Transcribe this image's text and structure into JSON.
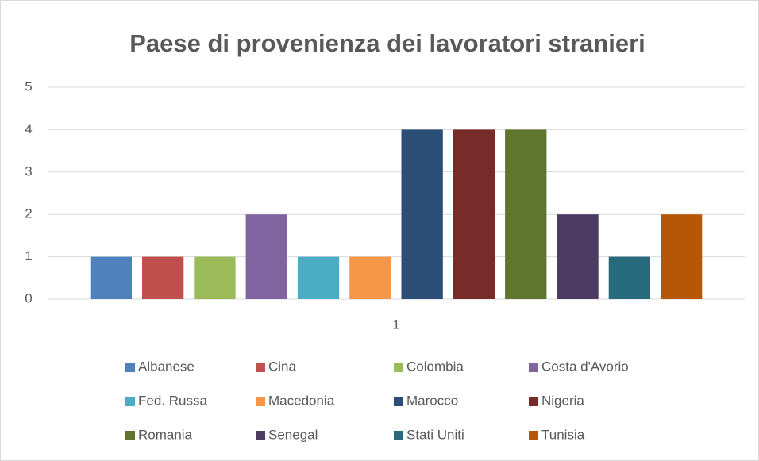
{
  "chart_data": {
    "type": "bar",
    "title": "Paese di provenienza dei lavoratori stranieri",
    "categories": [
      "1"
    ],
    "series": [
      {
        "name": "Albanese",
        "color": "#4f81bd",
        "values": [
          1
        ]
      },
      {
        "name": "Cina",
        "color": "#c0504d",
        "values": [
          1
        ]
      },
      {
        "name": "Colombia",
        "color": "#9bbb59",
        "values": [
          1
        ]
      },
      {
        "name": "Costa d'Avorio",
        "color": "#8064a2",
        "values": [
          2
        ]
      },
      {
        "name": "Fed. Russa",
        "color": "#4bacc6",
        "values": [
          1
        ]
      },
      {
        "name": "Macedonia",
        "color": "#f79646",
        "values": [
          1
        ]
      },
      {
        "name": "Marocco",
        "color": "#2c4d75",
        "values": [
          4
        ]
      },
      {
        "name": "Nigeria",
        "color": "#772c2a",
        "values": [
          4
        ]
      },
      {
        "name": "Romania",
        "color": "#5f7530",
        "values": [
          4
        ]
      },
      {
        "name": "Senegal",
        "color": "#4d3b62",
        "values": [
          2
        ]
      },
      {
        "name": "Stati Uniti",
        "color": "#276a7c",
        "values": [
          1
        ]
      },
      {
        "name": "Tunisia",
        "color": "#b65708",
        "values": [
          2
        ]
      }
    ],
    "ylim": [
      0,
      5
    ],
    "yticks": [
      0,
      1,
      2,
      3,
      4,
      5
    ],
    "grid": true,
    "legend": "bottom"
  }
}
